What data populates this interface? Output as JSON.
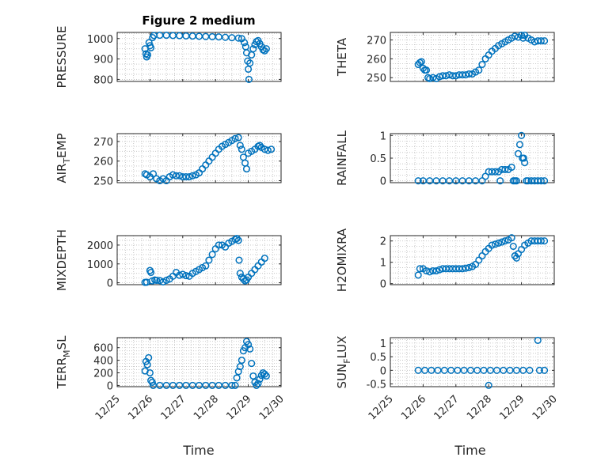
{
  "figure_title": "Figure 2 medium",
  "colors": {
    "marker": "#0072BD",
    "axis": "#262626",
    "grid": "#BDBDBD"
  },
  "chart_data": [
    {
      "type": "scatter",
      "title": "Figure 2 medium",
      "ylabel": "PRESSURE",
      "ylim": [
        790,
        1030
      ],
      "yticks": [
        800,
        900,
        1000
      ],
      "ytick_labels": [
        "800",
        "900",
        "1000"
      ],
      "grid": true,
      "points": [
        [
          25.85,
          950
        ],
        [
          25.88,
          925
        ],
        [
          25.9,
          910
        ],
        [
          25.93,
          920
        ],
        [
          25.97,
          980
        ],
        [
          26.0,
          965
        ],
        [
          26.03,
          955
        ],
        [
          26.08,
          1005
        ],
        [
          26.12,
          1015
        ],
        [
          26.3,
          1016
        ],
        [
          26.5,
          1016
        ],
        [
          26.7,
          1015
        ],
        [
          26.9,
          1014
        ],
        [
          27.1,
          1013
        ],
        [
          27.3,
          1012
        ],
        [
          27.5,
          1011
        ],
        [
          27.7,
          1010
        ],
        [
          27.9,
          1009
        ],
        [
          28.1,
          1008
        ],
        [
          28.3,
          1006
        ],
        [
          28.5,
          1004
        ],
        [
          28.7,
          1002
        ],
        [
          28.8,
          1000
        ],
        [
          28.88,
          980
        ],
        [
          28.92,
          960
        ],
        [
          28.95,
          930
        ],
        [
          28.98,
          890
        ],
        [
          29.0,
          850
        ],
        [
          29.02,
          800
        ],
        [
          29.05,
          880
        ],
        [
          29.1,
          920
        ],
        [
          29.15,
          950
        ],
        [
          29.2,
          970
        ],
        [
          29.25,
          985
        ],
        [
          29.3,
          990
        ],
        [
          29.35,
          975
        ],
        [
          29.4,
          960
        ],
        [
          29.45,
          945
        ],
        [
          29.5,
          940
        ],
        [
          29.55,
          950
        ]
      ]
    },
    {
      "type": "scatter",
      "ylabel": "THETA",
      "ylim": [
        248,
        274
      ],
      "yticks": [
        250,
        260,
        270
      ],
      "ytick_labels": [
        "250",
        "260",
        "270"
      ],
      "grid": true,
      "points": [
        [
          25.85,
          257
        ],
        [
          25.9,
          258
        ],
        [
          25.95,
          258.5
        ],
        [
          26.0,
          255
        ],
        [
          26.05,
          254
        ],
        [
          26.1,
          254
        ],
        [
          26.15,
          250
        ],
        [
          26.2,
          249.5
        ],
        [
          26.3,
          250
        ],
        [
          26.4,
          249.5
        ],
        [
          26.5,
          250.5
        ],
        [
          26.6,
          251
        ],
        [
          26.7,
          251
        ],
        [
          26.8,
          251.5
        ],
        [
          26.9,
          251
        ],
        [
          27.0,
          251
        ],
        [
          27.1,
          251.5
        ],
        [
          27.2,
          251.5
        ],
        [
          27.3,
          251.5
        ],
        [
          27.4,
          252
        ],
        [
          27.5,
          252
        ],
        [
          27.6,
          253
        ],
        [
          27.7,
          254
        ],
        [
          27.8,
          257
        ],
        [
          27.9,
          260
        ],
        [
          28.0,
          262
        ],
        [
          28.1,
          264
        ],
        [
          28.2,
          265.5
        ],
        [
          28.3,
          267
        ],
        [
          28.4,
          268
        ],
        [
          28.5,
          269
        ],
        [
          28.6,
          270
        ],
        [
          28.7,
          271
        ],
        [
          28.8,
          272
        ],
        [
          28.9,
          271.5
        ],
        [
          29.0,
          272.5
        ],
        [
          29.05,
          271
        ],
        [
          29.1,
          272.5
        ],
        [
          29.2,
          271
        ],
        [
          29.3,
          270
        ],
        [
          29.4,
          269
        ],
        [
          29.5,
          269.5
        ],
        [
          29.6,
          269.5
        ],
        [
          29.7,
          269.5
        ]
      ]
    },
    {
      "type": "scatter",
      "ylabel": "AIR_TEMP",
      "ylim": [
        249,
        274
      ],
      "yticks": [
        250,
        260,
        270
      ],
      "ytick_labels": [
        "250",
        "260",
        "270"
      ],
      "grid": true,
      "points": [
        [
          25.85,
          253.5
        ],
        [
          25.9,
          253
        ],
        [
          26.0,
          252
        ],
        [
          26.1,
          253.5
        ],
        [
          26.2,
          251
        ],
        [
          26.3,
          250
        ],
        [
          26.4,
          251
        ],
        [
          26.5,
          250
        ],
        [
          26.6,
          252
        ],
        [
          26.7,
          253
        ],
        [
          26.8,
          252.5
        ],
        [
          26.9,
          252.5
        ],
        [
          27.0,
          252
        ],
        [
          27.1,
          252
        ],
        [
          27.2,
          252
        ],
        [
          27.3,
          252.5
        ],
        [
          27.4,
          253
        ],
        [
          27.5,
          254
        ],
        [
          27.6,
          256
        ],
        [
          27.7,
          258
        ],
        [
          27.8,
          260
        ],
        [
          27.9,
          262
        ],
        [
          28.0,
          264
        ],
        [
          28.1,
          266
        ],
        [
          28.2,
          267.5
        ],
        [
          28.3,
          268.5
        ],
        [
          28.4,
          269.5
        ],
        [
          28.5,
          270.5
        ],
        [
          28.6,
          271.5
        ],
        [
          28.7,
          272
        ],
        [
          28.75,
          268
        ],
        [
          28.8,
          266
        ],
        [
          28.85,
          262
        ],
        [
          28.9,
          259
        ],
        [
          28.95,
          256
        ],
        [
          29.0,
          264
        ],
        [
          29.1,
          265
        ],
        [
          29.2,
          266
        ],
        [
          29.3,
          267.5
        ],
        [
          29.35,
          268
        ],
        [
          29.4,
          267
        ],
        [
          29.5,
          266
        ],
        [
          29.6,
          265.5
        ],
        [
          29.7,
          266
        ]
      ]
    },
    {
      "type": "scatter",
      "ylabel": "RAINFALL",
      "ylim": [
        -0.04,
        1.04
      ],
      "yticks": [
        0,
        0.5,
        1
      ],
      "ytick_labels": [
        "0",
        "0.5",
        "1"
      ],
      "grid": true,
      "points": [
        [
          25.85,
          0
        ],
        [
          26.0,
          0
        ],
        [
          26.2,
          0
        ],
        [
          26.4,
          0
        ],
        [
          26.6,
          0
        ],
        [
          26.8,
          0
        ],
        [
          27.0,
          0
        ],
        [
          27.2,
          0
        ],
        [
          27.4,
          0
        ],
        [
          27.6,
          0
        ],
        [
          27.8,
          0
        ],
        [
          27.9,
          0.1
        ],
        [
          28.0,
          0.2
        ],
        [
          28.1,
          0.2
        ],
        [
          28.2,
          0.2
        ],
        [
          28.3,
          0.2
        ],
        [
          28.35,
          0
        ],
        [
          28.4,
          0.25
        ],
        [
          28.5,
          0.25
        ],
        [
          28.6,
          0.25
        ],
        [
          28.7,
          0.3
        ],
        [
          28.75,
          0
        ],
        [
          28.8,
          0
        ],
        [
          28.85,
          0
        ],
        [
          28.9,
          0.6
        ],
        [
          28.95,
          0.8
        ],
        [
          29.0,
          1.0
        ],
        [
          29.03,
          0.5
        ],
        [
          29.07,
          0.5
        ],
        [
          29.1,
          0.4
        ],
        [
          29.15,
          0
        ],
        [
          29.2,
          0
        ],
        [
          29.3,
          0
        ],
        [
          29.4,
          0
        ],
        [
          29.5,
          0
        ],
        [
          29.6,
          0
        ],
        [
          29.7,
          0
        ]
      ]
    },
    {
      "type": "scatter",
      "ylabel": "MIXDEPTH",
      "ylim": [
        -100,
        2500
      ],
      "yticks": [
        0,
        1000,
        2000
      ],
      "ytick_labels": [
        "0",
        "1000",
        "2000"
      ],
      "grid": true,
      "points": [
        [
          25.85,
          20
        ],
        [
          25.9,
          30
        ],
        [
          26.0,
          650
        ],
        [
          26.03,
          550
        ],
        [
          26.07,
          100
        ],
        [
          26.15,
          150
        ],
        [
          26.2,
          130
        ],
        [
          26.3,
          120
        ],
        [
          26.4,
          50
        ],
        [
          26.5,
          130
        ],
        [
          26.6,
          200
        ],
        [
          26.7,
          350
        ],
        [
          26.8,
          550
        ],
        [
          26.9,
          400
        ],
        [
          27.0,
          450
        ],
        [
          27.1,
          380
        ],
        [
          27.2,
          350
        ],
        [
          27.3,
          500
        ],
        [
          27.4,
          600
        ],
        [
          27.5,
          700
        ],
        [
          27.6,
          800
        ],
        [
          27.7,
          900
        ],
        [
          27.8,
          1200
        ],
        [
          27.9,
          1500
        ],
        [
          28.0,
          1800
        ],
        [
          28.1,
          2000
        ],
        [
          28.2,
          2000
        ],
        [
          28.3,
          1900
        ],
        [
          28.4,
          2100
        ],
        [
          28.5,
          2200
        ],
        [
          28.6,
          2300
        ],
        [
          28.65,
          2350
        ],
        [
          28.7,
          2250
        ],
        [
          28.72,
          1200
        ],
        [
          28.75,
          500
        ],
        [
          28.8,
          300
        ],
        [
          28.85,
          200
        ],
        [
          28.9,
          100
        ],
        [
          28.95,
          150
        ],
        [
          29.0,
          300
        ],
        [
          29.1,
          500
        ],
        [
          29.2,
          700
        ],
        [
          29.3,
          900
        ],
        [
          29.4,
          1100
        ],
        [
          29.5,
          1300
        ]
      ]
    },
    {
      "type": "scatter",
      "ylabel": "H2OMIXRA",
      "ylim": [
        -0.05,
        2.25
      ],
      "yticks": [
        0,
        1,
        2
      ],
      "ytick_labels": [
        "0",
        "1",
        "2"
      ],
      "grid": true,
      "points": [
        [
          25.85,
          0.4
        ],
        [
          25.9,
          0.7
        ],
        [
          26.0,
          0.7
        ],
        [
          26.1,
          0.6
        ],
        [
          26.2,
          0.55
        ],
        [
          26.3,
          0.6
        ],
        [
          26.4,
          0.6
        ],
        [
          26.5,
          0.65
        ],
        [
          26.6,
          0.7
        ],
        [
          26.7,
          0.7
        ],
        [
          26.8,
          0.7
        ],
        [
          26.9,
          0.7
        ],
        [
          27.0,
          0.7
        ],
        [
          27.1,
          0.7
        ],
        [
          27.2,
          0.7
        ],
        [
          27.3,
          0.72
        ],
        [
          27.4,
          0.75
        ],
        [
          27.5,
          0.8
        ],
        [
          27.6,
          0.9
        ],
        [
          27.7,
          1.1
        ],
        [
          27.8,
          1.3
        ],
        [
          27.9,
          1.5
        ],
        [
          28.0,
          1.65
        ],
        [
          28.1,
          1.8
        ],
        [
          28.2,
          1.85
        ],
        [
          28.3,
          1.9
        ],
        [
          28.4,
          1.95
        ],
        [
          28.5,
          2.0
        ],
        [
          28.6,
          2.05
        ],
        [
          28.7,
          2.15
        ],
        [
          28.75,
          1.75
        ],
        [
          28.8,
          1.3
        ],
        [
          28.85,
          1.2
        ],
        [
          28.9,
          1.4
        ],
        [
          29.0,
          1.6
        ],
        [
          29.1,
          1.8
        ],
        [
          29.2,
          1.9
        ],
        [
          29.3,
          2.0
        ],
        [
          29.4,
          2.0
        ],
        [
          29.5,
          2.0
        ],
        [
          29.6,
          2.0
        ],
        [
          29.7,
          2.0
        ]
      ]
    },
    {
      "type": "scatter",
      "ylabel": "TERR_MSL",
      "ylim": [
        -20,
        760
      ],
      "yticks": [
        0,
        200,
        400,
        600
      ],
      "ytick_labels": [
        "0",
        "200",
        "400",
        "600"
      ],
      "grid": true,
      "points": [
        [
          25.85,
          230
        ],
        [
          25.88,
          380
        ],
        [
          25.92,
          330
        ],
        [
          25.96,
          440
        ],
        [
          26.0,
          200
        ],
        [
          26.03,
          80
        ],
        [
          26.07,
          50
        ],
        [
          26.1,
          0
        ],
        [
          26.3,
          0
        ],
        [
          26.5,
          0
        ],
        [
          26.7,
          0
        ],
        [
          26.9,
          0
        ],
        [
          27.1,
          0
        ],
        [
          27.3,
          0
        ],
        [
          27.5,
          0
        ],
        [
          27.7,
          0
        ],
        [
          27.9,
          0
        ],
        [
          28.1,
          0
        ],
        [
          28.3,
          0
        ],
        [
          28.5,
          0
        ],
        [
          28.6,
          0
        ],
        [
          28.65,
          120
        ],
        [
          28.7,
          220
        ],
        [
          28.75,
          300
        ],
        [
          28.8,
          400
        ],
        [
          28.85,
          550
        ],
        [
          28.9,
          600
        ],
        [
          28.95,
          700
        ],
        [
          29.0,
          650
        ],
        [
          29.05,
          580
        ],
        [
          29.1,
          350
        ],
        [
          29.15,
          150
        ],
        [
          29.2,
          50
        ],
        [
          29.25,
          0
        ],
        [
          29.3,
          30
        ],
        [
          29.35,
          100
        ],
        [
          29.4,
          160
        ],
        [
          29.45,
          200
        ],
        [
          29.5,
          180
        ],
        [
          29.55,
          150
        ]
      ]
    },
    {
      "type": "scatter",
      "ylabel": "SUN_FLUX",
      "ylim": [
        -0.6,
        1.2
      ],
      "yticks": [
        -0.5,
        0,
        0.5,
        1
      ],
      "ytick_labels": [
        "-0.5",
        "0",
        "0.5",
        "1"
      ],
      "grid": true,
      "points": [
        [
          25.85,
          0
        ],
        [
          26.05,
          0
        ],
        [
          26.25,
          0
        ],
        [
          26.45,
          0
        ],
        [
          26.65,
          0
        ],
        [
          26.85,
          0
        ],
        [
          27.05,
          0
        ],
        [
          27.25,
          0
        ],
        [
          27.45,
          0
        ],
        [
          27.65,
          0
        ],
        [
          27.85,
          0
        ],
        [
          28.0,
          -0.55
        ],
        [
          28.05,
          0
        ],
        [
          28.25,
          0
        ],
        [
          28.45,
          0
        ],
        [
          28.65,
          0
        ],
        [
          28.85,
          0
        ],
        [
          29.05,
          0
        ],
        [
          29.25,
          0
        ],
        [
          29.5,
          1.1
        ],
        [
          29.55,
          0
        ],
        [
          29.7,
          0
        ]
      ]
    }
  ],
  "x_axis": {
    "range": [
      25.0,
      30.0
    ],
    "ticks": [
      25,
      26,
      27,
      28,
      29,
      30
    ],
    "tick_labels": [
      "12/25",
      "12/26",
      "12/27",
      "12/28",
      "12/29",
      "12/30"
    ],
    "xlabel": "Time"
  }
}
